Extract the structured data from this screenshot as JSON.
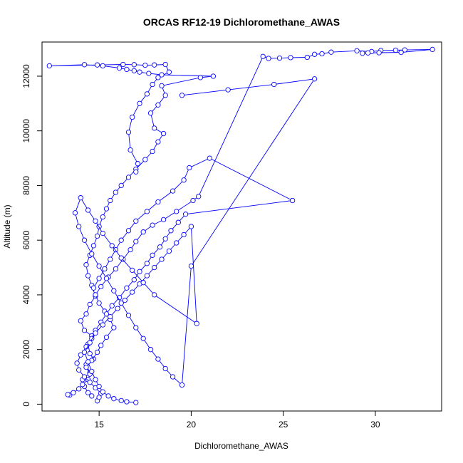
{
  "chart_data": {
    "type": "line",
    "title": "ORCAS RF12-19 Dichloromethane_AWAS",
    "xlabel": "Dichloromethane_AWAS",
    "ylabel": "Altitude (m)",
    "xlim": [
      11.9,
      33.6
    ],
    "ylim": [
      -250,
      13250
    ],
    "xticks": [
      15,
      20,
      25,
      30
    ],
    "yticks": [
      0,
      2000,
      4000,
      6000,
      8000,
      10000,
      12000
    ],
    "grid": false,
    "legend": "none",
    "series_color": "#0000ff",
    "point_style": "open-circle",
    "series": [
      {
        "x": [
          14.6,
          14.4,
          14.2,
          14.1,
          14.5,
          14.3,
          14.7,
          14.5,
          14.4,
          14.6,
          14.2,
          14.0,
          14.3,
          14.5,
          14.8,
          14.6,
          14.4,
          14.3,
          14.5,
          14.7,
          14.9,
          15.0,
          15.2,
          15.4,
          15.6,
          15.9,
          16.2,
          16.6,
          17.0,
          17.5,
          17.9,
          18.2,
          18.5,
          18.0,
          17.8,
          18.2,
          18.6,
          18.4,
          20.5,
          21.2,
          18.4,
          17.7,
          17.2,
          16.9,
          16.5,
          16.1,
          15.2,
          14.2,
          12.3,
          14.9,
          16.3,
          16.9,
          17.5,
          18.0,
          18.6,
          18.8,
          18.2,
          17.9,
          17.6,
          17.2,
          16.8,
          16.6,
          16.7,
          17.1,
          17.0
        ],
        "y": [
          300,
          420,
          650,
          900,
          1150,
          1450,
          1650,
          1850,
          2200,
          2500,
          2700,
          3050,
          3300,
          3650,
          3950,
          4350,
          4700,
          5100,
          5450,
          5800,
          6150,
          6500,
          6850,
          7150,
          7450,
          7750,
          8000,
          8300,
          8600,
          8950,
          9250,
          9600,
          9900,
          10100,
          10650,
          10950,
          11300,
          11650,
          11950,
          12000,
          12050,
          12100,
          12150,
          12200,
          12250,
          12300,
          12380,
          12420,
          12380,
          12410,
          12430,
          12420,
          12400,
          12410,
          12430,
          12150,
          11950,
          11700,
          11350,
          11000,
          10500,
          9950,
          9300,
          8800,
          8500
        ]
      },
      {
        "x": [
          13.4,
          13.3,
          13.6,
          13.9,
          14.1,
          14.4,
          14.5,
          14.3,
          14.6,
          14.9,
          15.1,
          15.4,
          15.8,
          15.6,
          15.3,
          15.0,
          14.8,
          15.1,
          15.5,
          15.9,
          16.3,
          16.7,
          17.0,
          17.4,
          17.9,
          18.5,
          19.2,
          20.1,
          20.4,
          23.9,
          24.2,
          24.8,
          25.4,
          26.3,
          26.7,
          27.1,
          27.6,
          29.0,
          29.8,
          30.3,
          31.1,
          31.6,
          33.1,
          31.4,
          30.2,
          29.6,
          29.3
        ],
        "y": [
          330,
          350,
          420,
          560,
          720,
          900,
          1100,
          1350,
          1600,
          1900,
          2150,
          2450,
          2800,
          3100,
          3400,
          3700,
          4000,
          4300,
          4650,
          4950,
          5300,
          5650,
          5950,
          6300,
          6550,
          6750,
          7050,
          7450,
          7600,
          12720,
          12650,
          12660,
          12680,
          12690,
          12800,
          12820,
          12880,
          12930,
          12900,
          12940,
          12950,
          12960,
          12980,
          12870,
          12860,
          12850,
          12840
        ]
      },
      {
        "x": [
          14.9,
          15.0,
          15.1,
          14.8,
          14.5,
          14.2,
          13.9,
          13.8,
          14.0,
          14.3,
          14.6,
          14.8,
          15.1,
          15.4,
          15.7,
          16.1,
          16.5,
          16.9,
          17.2,
          17.6,
          17.9,
          18.3,
          18.6,
          18.9,
          19.3,
          19.7,
          25.5,
          21.0,
          19.9,
          19.6,
          19.0,
          18.2,
          17.6,
          17.0,
          16.6,
          16.2,
          15.9,
          15.6,
          15.3,
          15.0,
          14.7
        ],
        "y": [
          120,
          250,
          400,
          600,
          800,
          1000,
          1250,
          1500,
          1800,
          2100,
          2400,
          2700,
          3000,
          3300,
          3600,
          3900,
          4250,
          4550,
          4850,
          5150,
          5450,
          5750,
          6050,
          6350,
          6650,
          6950,
          7450,
          9000,
          8650,
          8200,
          7800,
          7400,
          7050,
          6700,
          6350,
          6000,
          5650,
          5300,
          4950,
          4600,
          4250
        ]
      },
      {
        "x": [
          17.0,
          16.5,
          16.2,
          15.8,
          15.5,
          15.2,
          15.0,
          14.8,
          14.6,
          14.4,
          14.2,
          14.5,
          14.8,
          15.2,
          15.6,
          16.0,
          16.4,
          16.8,
          17.2,
          17.6,
          18.0,
          18.4,
          18.8,
          19.2,
          19.6,
          20.0,
          20.3,
          18.0,
          17.4,
          16.8,
          16.2,
          15.7,
          15.2,
          14.8,
          14.4,
          14.0,
          13.7,
          13.9,
          14.2,
          14.6,
          15.0,
          15.4,
          15.8,
          16.2,
          16.6,
          17.0,
          17.4,
          17.8,
          18.2,
          18.6,
          19.0,
          19.5,
          20.0,
          26.7,
          24.5,
          22.0,
          19.5
        ],
        "y": [
          60,
          90,
          130,
          200,
          300,
          450,
          650,
          900,
          1200,
          1550,
          1900,
          2250,
          2600,
          2900,
          3200,
          3500,
          3800,
          4100,
          4400,
          4700,
          5000,
          5300,
          5600,
          5900,
          6200,
          6500,
          2950,
          4000,
          4450,
          4900,
          5350,
          5800,
          6250,
          6700,
          7100,
          7550,
          7000,
          6500,
          6000,
          5500,
          5050,
          4600,
          4150,
          3700,
          3250,
          2800,
          2400,
          2000,
          1650,
          1300,
          1000,
          700,
          5050,
          11900,
          11700,
          11500,
          11300
        ]
      }
    ]
  }
}
